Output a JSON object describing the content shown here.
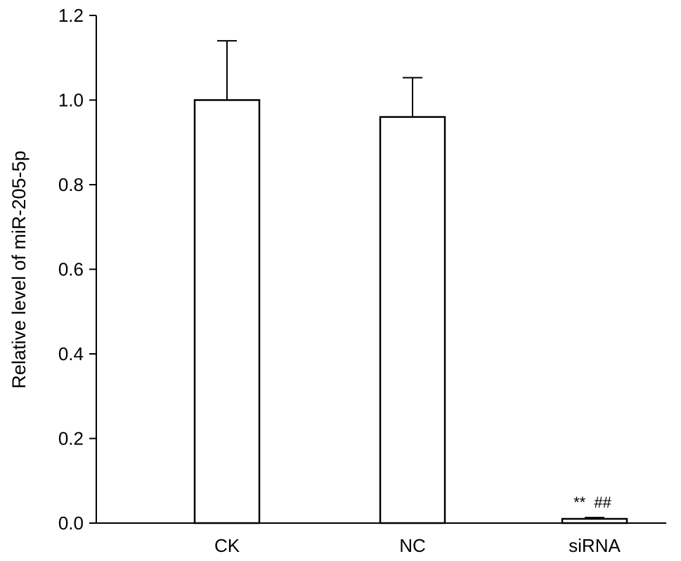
{
  "chart_data": {
    "type": "bar",
    "title": "",
    "xlabel": "",
    "ylabel": "Relative level of miR-205-5p",
    "categories": [
      "CK",
      "NC",
      "siRNA"
    ],
    "values": [
      1.0,
      0.96,
      0.01
    ],
    "error": [
      0.14,
      0.093,
      0.003
    ],
    "ylim": [
      0,
      1.2
    ],
    "yticks": [
      0.0,
      0.2,
      0.4,
      0.6,
      0.8,
      1.0,
      1.2
    ],
    "ytick_labels": [
      "0.0",
      "0.2",
      "0.4",
      "0.6",
      "0.8",
      "1.0",
      "1.2"
    ],
    "annotations": [
      {
        "category": "siRNA",
        "text": "** ##"
      }
    ],
    "bar_fill": "#ffffff",
    "bar_stroke": "#000000",
    "grid": false,
    "legend": "none"
  }
}
